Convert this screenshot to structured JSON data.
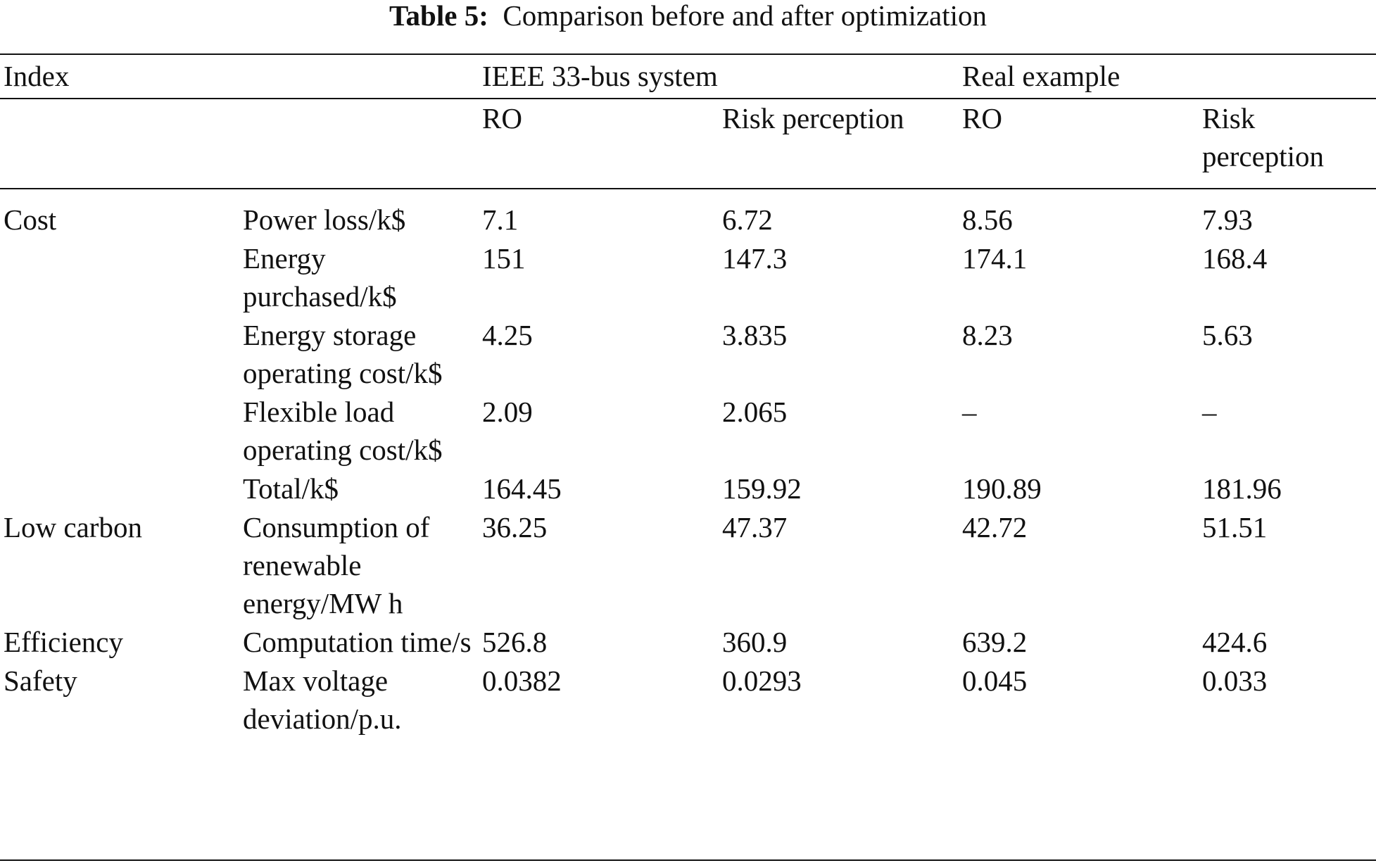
{
  "caption": {
    "label": "Table 5:",
    "title": "Comparison before and after optimization"
  },
  "header": {
    "index_label": "Index",
    "group1": "IEEE 33-bus system",
    "group2": "Real example",
    "sub": [
      "RO",
      "Risk perception",
      "RO",
      "Risk perception"
    ]
  },
  "rows": [
    {
      "category": "Cost",
      "item": "Power loss/k$",
      "values": [
        "7.1",
        "6.72",
        "8.56",
        "7.93"
      ]
    },
    {
      "category": "",
      "item": "Energy purchased/k$",
      "values": [
        "151",
        "147.3",
        "174.1",
        "168.4"
      ]
    },
    {
      "category": "",
      "item": "Energy storage operating cost/k$",
      "values": [
        "4.25",
        "3.835",
        "8.23",
        "5.63"
      ]
    },
    {
      "category": "",
      "item": "Flexible load operating cost/k$",
      "values": [
        "2.09",
        "2.065",
        "–",
        "–"
      ]
    },
    {
      "category": "",
      "item": "Total/k$",
      "values": [
        "164.45",
        "159.92",
        "190.89",
        "181.96"
      ]
    },
    {
      "category": "Low carbon",
      "item": "Consumption of renewable energy/MW h",
      "values": [
        "36.25",
        "47.37",
        "42.72",
        "51.51"
      ]
    },
    {
      "category": "Efficiency",
      "item": "Computation time/s",
      "values": [
        "526.8",
        "360.9",
        "639.2",
        "424.6"
      ]
    },
    {
      "category": "Safety",
      "item": "Max voltage deviation/p.u.",
      "values": [
        "0.0382",
        "0.0293",
        "0.045",
        "0.033"
      ]
    }
  ]
}
